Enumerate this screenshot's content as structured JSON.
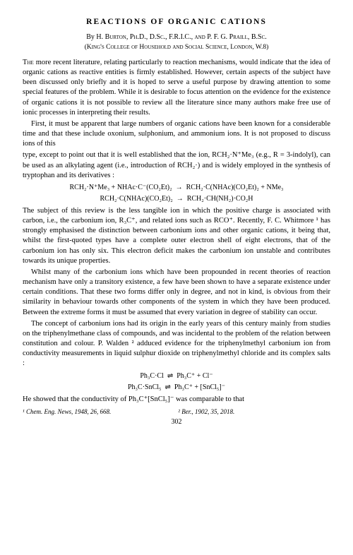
{
  "title": "REACTIONS OF ORGANIC CATIONS",
  "authors_prefix": "By ",
  "authors": "H. Burton, Ph.D., D.Sc., F.R.I.C., and P. F. G. Praill, B.Sc.",
  "affiliation": "(King's College of Household and Social Science, London, W.8)",
  "para1_lead": "The",
  "para1_rest": " more recent literature, relating particularly to reaction mechanisms, would indicate that the idea of organic cations as reactive entities is firmly established. However, certain aspects of the subject have been discussed only briefly and it is hoped to serve a useful purpose by drawing attention to some special features of the problem. While it is desirable to focus attention on the evidence for the existence of organic cations it is not possible to review all the literature since many authors make free use of ionic processes in interpreting their results.",
  "para2": "First, it must be apparent that large numbers of organic cations have been known for a considerable time and that these include oxonium, sulphonium, and ammonium ions. It is not proposed to discuss ions of this",
  "para2b_pre": "type, except to point out that it is well established that the ion, RCH",
  "para2b_post": " (e.g., R = 3-indolyl), can be used as an alkylating agent (i.e., introduction of RCH₂·) and is widely employed in the synthesis of tryptophan and its derivatives :",
  "eqn1": "RCH₂·N⁺Me₃ + NHAc·C⁻(CO₂Et)₂  →  RCH₂·C(NHAc)(CO₂Et)₂ + NMe₃",
  "eqn2": "RCH₂·C(NHAc)(CO₂Et)₂  →  RCH₂·CH(NH₂)·CO₂H",
  "para3": "The subject of this review is the less tangible ion in which the positive charge is associated with carbon, i.e., the carbonium ion, R₃C⁺, and related ions such as RCO⁺. Recently, F. C. Whitmore ¹ has strongly emphasised the distinction between carbonium ions and other organic cations, it being that, whilst the first-quoted types have a complete outer electron shell of eight electrons, that of the carbonium ion has only six. This electron deficit makes the carbonium ion unstable and contributes towards its unique properties.",
  "para4": "Whilst many of the carbonium ions which have been propounded in recent theories of reaction mechanism have only a transitory existence, a few have been shown to have a separate existence under certain conditions. That these two forms differ only in degree, and not in kind, is obvious from their similarity in behaviour towards other components of the system in which they have been produced. Between the extreme forms it must be assumed that every variation in degree of stability can occur.",
  "para5": "The concept of carbonium ions had its origin in the early years of this century mainly from studies on the triphenylmethane class of compounds, and was incidental to the problem of the relation between constitution and colour. P. Walden ² adduced evidence for the triphenylmethyl carbonium ion from conductivity measurements in liquid sulphur dioxide on triphenylmethyl chloride and its complex salts :",
  "eqn3": "Ph₃C·Cl  ⇌  Ph₃C⁺ + Cl⁻",
  "eqn4": "Ph₃C·SnCl₅  ⇌  Ph₃C⁺ + [SnCl₅]⁻",
  "para6": "He showed that the conductivity of Ph₃C⁺[SnCl₅]⁻ was comparable to that",
  "ref1": "¹ Chem. Eng. News, 1948, 26, 668.",
  "ref2": "² Ber., 1902, 35, 2018.",
  "pagenum": "302",
  "nme3": "₂·N⁺Me₃"
}
